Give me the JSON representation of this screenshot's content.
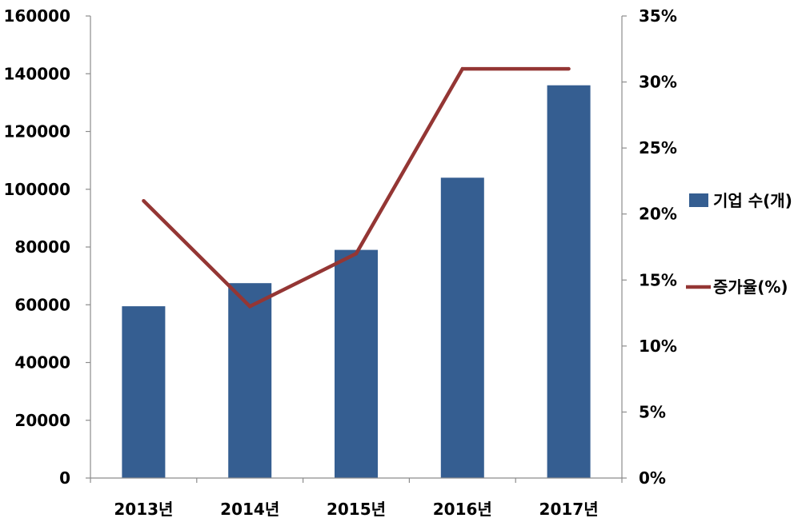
{
  "chart_data": {
    "type": "bar",
    "categories": [
      "2013년",
      "2014년",
      "2015년",
      "2016년",
      "2017년"
    ],
    "series": [
      {
        "name": "기업 수(개)",
        "type": "bar",
        "axis": "left",
        "values": [
          59500,
          67500,
          79000,
          104000,
          136000
        ]
      },
      {
        "name": "증가율(%)",
        "type": "line",
        "axis": "right",
        "values": [
          21,
          13,
          17,
          31,
          31
        ]
      }
    ],
    "ylim": [
      0,
      160000
    ],
    "y_ticks": [
      "0",
      "20000",
      "40000",
      "60000",
      "80000",
      "100000",
      "120000",
      "140000",
      "160000"
    ],
    "y2lim": [
      0,
      35
    ],
    "y2_ticks": [
      "0%",
      "5%",
      "10%",
      "15%",
      "20%",
      "25%",
      "30%",
      "35%"
    ],
    "legend_position": "right",
    "grid": false,
    "colors": {
      "bar": "#355E91",
      "line": "#943634",
      "axis": "#8c8c8c"
    }
  }
}
